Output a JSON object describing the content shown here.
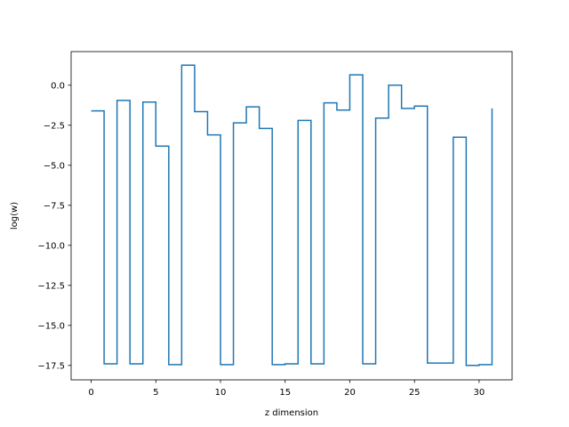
{
  "chart_data": {
    "type": "line",
    "drawstyle": "steps-post",
    "xlabel": "z dimension",
    "ylabel": "log(w)",
    "xlim": [
      -1.55,
      32.55
    ],
    "ylim": [
      -18.4,
      2.1
    ],
    "xticks": [
      0,
      5,
      10,
      15,
      20,
      25,
      30
    ],
    "yticks": [
      0.0,
      -2.5,
      -5.0,
      -7.5,
      -10.0,
      -12.5,
      -15.0,
      -17.5
    ],
    "ytick_labels": [
      "0.0",
      "−2.5",
      "−5.0",
      "−7.5",
      "−10.0",
      "−12.5",
      "−15.0",
      "−17.5"
    ],
    "grid": false,
    "line_color": "#1f77b4",
    "series": [
      {
        "x": [
          0,
          1,
          2,
          3,
          4,
          5,
          6,
          7,
          8,
          9,
          10,
          11,
          12,
          13,
          14,
          15,
          16,
          17,
          18,
          19,
          20,
          21,
          22,
          23,
          24,
          25,
          26,
          27,
          28,
          29,
          30,
          31
        ],
        "values": [
          -1.6,
          -17.4,
          -0.95,
          -17.4,
          -1.05,
          -3.8,
          -17.45,
          1.25,
          -1.65,
          -3.1,
          -17.45,
          -2.35,
          -1.35,
          -2.7,
          -17.45,
          -17.4,
          -2.2,
          -17.4,
          -1.1,
          -1.55,
          0.65,
          -17.4,
          -2.05,
          0.0,
          -1.45,
          -1.3,
          -17.35,
          -17.35,
          -3.25,
          -17.5,
          -17.45,
          -1.45
        ]
      }
    ]
  }
}
